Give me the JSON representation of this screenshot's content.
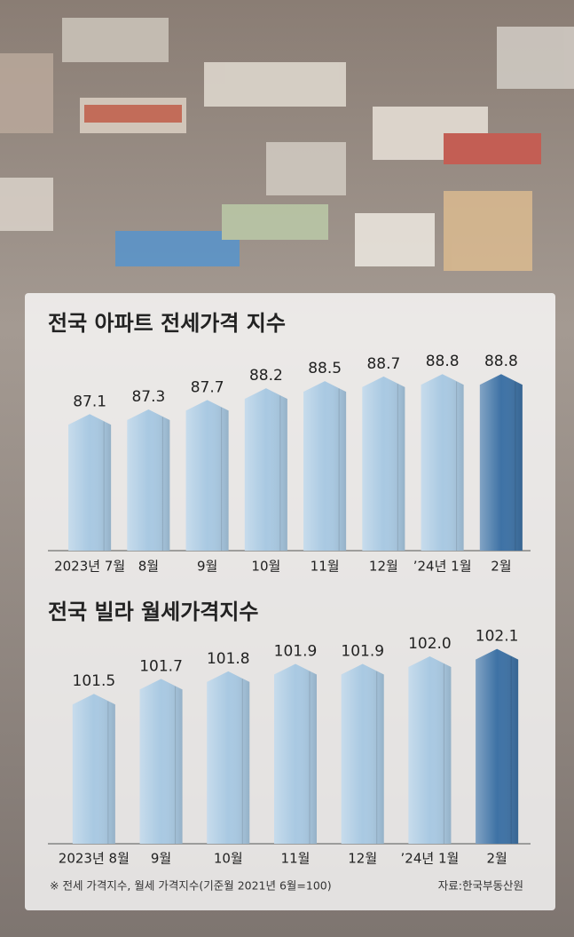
{
  "chart_data": [
    {
      "type": "bar",
      "title": "전국 아파트 전세가격 지수",
      "categories": [
        "2023년 7월",
        "8월",
        "9월",
        "10월",
        "11월",
        "12월",
        "’24년 1월",
        "2월"
      ],
      "values": [
        87.1,
        87.3,
        87.7,
        88.2,
        88.5,
        88.7,
        88.8,
        88.8
      ],
      "colors": [
        "#a9c9e2",
        "#a9c9e2",
        "#a9c9e2",
        "#a9c9e2",
        "#a9c9e2",
        "#a9c9e2",
        "#a9c9e2",
        "#3e72a5"
      ],
      "ylim": [
        81.3,
        89.6
      ]
    },
    {
      "type": "bar",
      "title": "전국 빌라 월세가격지수",
      "categories": [
        "2023년 8월",
        "9월",
        "10월",
        "11월",
        "12월",
        "’24년 1월",
        "2월"
      ],
      "values": [
        101.5,
        101.7,
        101.8,
        101.9,
        101.9,
        102.0,
        102.1
      ],
      "value_labels": [
        "101.5",
        "101.7",
        "101.8",
        "101.9",
        "101.9",
        "102.0",
        "102.1"
      ],
      "colors": [
        "#a9c9e2",
        "#a9c9e2",
        "#a9c9e2",
        "#a9c9e2",
        "#a9c9e2",
        "#a9c9e2",
        "#3e72a5"
      ],
      "ylim": [
        99.5,
        102.32
      ]
    }
  ],
  "note": "※ 전세 가격지수, 월세 가격지수(기준월 2021년 6월=100)",
  "source": "자료:한국부동산원"
}
